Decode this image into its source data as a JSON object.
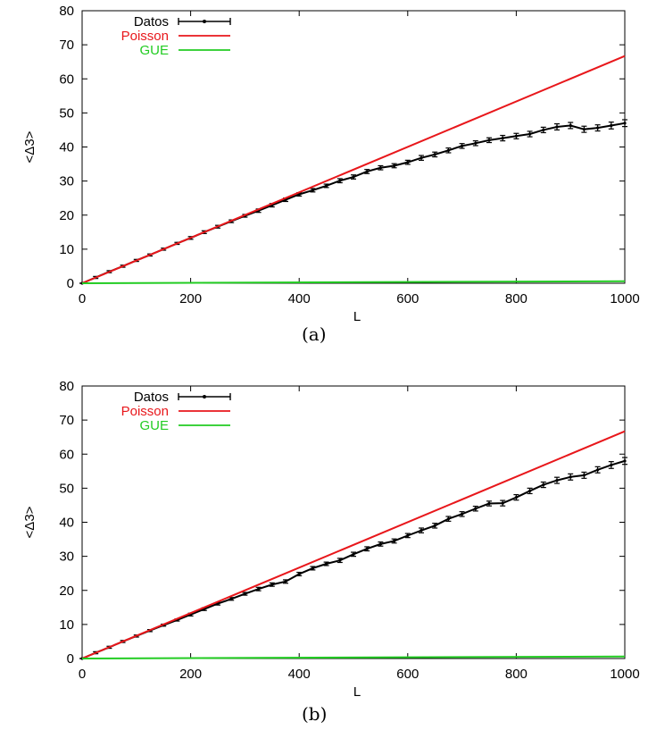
{
  "chart_data": [
    {
      "type": "line",
      "caption": "(a)",
      "title": "",
      "xlabel": "L",
      "ylabel": "<Δ3>",
      "xlim": [
        0,
        1000
      ],
      "ylim": [
        0,
        80
      ],
      "xticks": [
        "0",
        "200",
        "400",
        "600",
        "800",
        "1000"
      ],
      "yticks": [
        "0",
        "10",
        "20",
        "30",
        "40",
        "50",
        "60",
        "70",
        "80"
      ],
      "grid": false,
      "legend_position": "top-left",
      "series": [
        {
          "name": "Datos",
          "color": "#000000",
          "style": "points-with-errorbars",
          "x": [
            0,
            25,
            50,
            75,
            100,
            125,
            150,
            175,
            200,
            225,
            250,
            275,
            300,
            325,
            350,
            375,
            400,
            425,
            450,
            475,
            500,
            525,
            550,
            575,
            600,
            625,
            650,
            675,
            700,
            725,
            750,
            775,
            800,
            825,
            850,
            875,
            900,
            925,
            950,
            975,
            1000
          ],
          "y": [
            0,
            1.7,
            3.4,
            5.0,
            6.7,
            8.3,
            10.0,
            11.7,
            13.3,
            15.0,
            16.6,
            18.2,
            19.8,
            21.3,
            22.9,
            24.5,
            26.1,
            27.3,
            28.6,
            30.1,
            31.2,
            32.8,
            33.9,
            34.5,
            35.5,
            36.8,
            37.8,
            39.0,
            40.3,
            41.1,
            42.0,
            42.6,
            43.2,
            43.8,
            45.0,
            45.9,
            46.3,
            45.2,
            45.6,
            46.3,
            47.0
          ],
          "errors": [
            0,
            0.3,
            0.3,
            0.3,
            0.3,
            0.3,
            0.3,
            0.3,
            0.4,
            0.4,
            0.4,
            0.4,
            0.4,
            0.5,
            0.5,
            0.5,
            0.5,
            0.5,
            0.5,
            0.6,
            0.6,
            0.6,
            0.6,
            0.6,
            0.6,
            0.7,
            0.7,
            0.7,
            0.7,
            0.7,
            0.7,
            0.8,
            0.8,
            0.8,
            0.8,
            0.9,
            0.9,
            0.9,
            0.9,
            1.0,
            1.0
          ]
        },
        {
          "name": "Poisson",
          "color": "#e8171b",
          "style": "line",
          "x": [
            0,
            1000
          ],
          "y": [
            0,
            66.7
          ]
        },
        {
          "name": "GUE",
          "color": "#22cc22",
          "style": "line",
          "x": [
            0,
            1000
          ],
          "y": [
            0,
            0.6
          ]
        }
      ]
    },
    {
      "type": "line",
      "caption": "(b)",
      "title": "",
      "xlabel": "L",
      "ylabel": "<Δ3>",
      "xlim": [
        0,
        1000
      ],
      "ylim": [
        0,
        80
      ],
      "xticks": [
        "0",
        "200",
        "400",
        "600",
        "800",
        "1000"
      ],
      "yticks": [
        "0",
        "10",
        "20",
        "30",
        "40",
        "50",
        "60",
        "70",
        "80"
      ],
      "grid": false,
      "legend_position": "top-left",
      "series": [
        {
          "name": "Datos",
          "color": "#000000",
          "style": "points-with-errorbars",
          "x": [
            0,
            25,
            50,
            75,
            100,
            125,
            150,
            175,
            200,
            225,
            250,
            275,
            300,
            325,
            350,
            375,
            400,
            425,
            450,
            475,
            500,
            525,
            550,
            575,
            600,
            625,
            650,
            675,
            700,
            725,
            750,
            775,
            800,
            825,
            850,
            875,
            900,
            925,
            950,
            975,
            1000
          ],
          "y": [
            0,
            1.7,
            3.3,
            5.0,
            6.6,
            8.2,
            9.8,
            11.3,
            12.9,
            14.5,
            16.1,
            17.5,
            19.0,
            20.4,
            21.7,
            22.6,
            24.8,
            26.5,
            27.8,
            28.8,
            30.6,
            32.2,
            33.6,
            34.5,
            36.1,
            37.6,
            39.0,
            41.0,
            42.4,
            44.0,
            45.5,
            45.6,
            47.3,
            49.2,
            51.0,
            52.3,
            53.3,
            53.8,
            55.4,
            56.8,
            58.0
          ],
          "errors": [
            0,
            0.3,
            0.3,
            0.3,
            0.3,
            0.3,
            0.3,
            0.3,
            0.4,
            0.4,
            0.4,
            0.4,
            0.4,
            0.5,
            0.5,
            0.5,
            0.5,
            0.5,
            0.5,
            0.6,
            0.6,
            0.6,
            0.6,
            0.6,
            0.6,
            0.7,
            0.7,
            0.7,
            0.7,
            0.7,
            0.7,
            0.8,
            0.8,
            0.8,
            0.8,
            0.9,
            0.9,
            0.9,
            0.9,
            1.0,
            1.0
          ]
        },
        {
          "name": "Poisson",
          "color": "#e8171b",
          "style": "line",
          "x": [
            0,
            1000
          ],
          "y": [
            0,
            66.7
          ]
        },
        {
          "name": "GUE",
          "color": "#22cc22",
          "style": "line",
          "x": [
            0,
            1000
          ],
          "y": [
            0,
            0.6
          ]
        }
      ]
    }
  ]
}
